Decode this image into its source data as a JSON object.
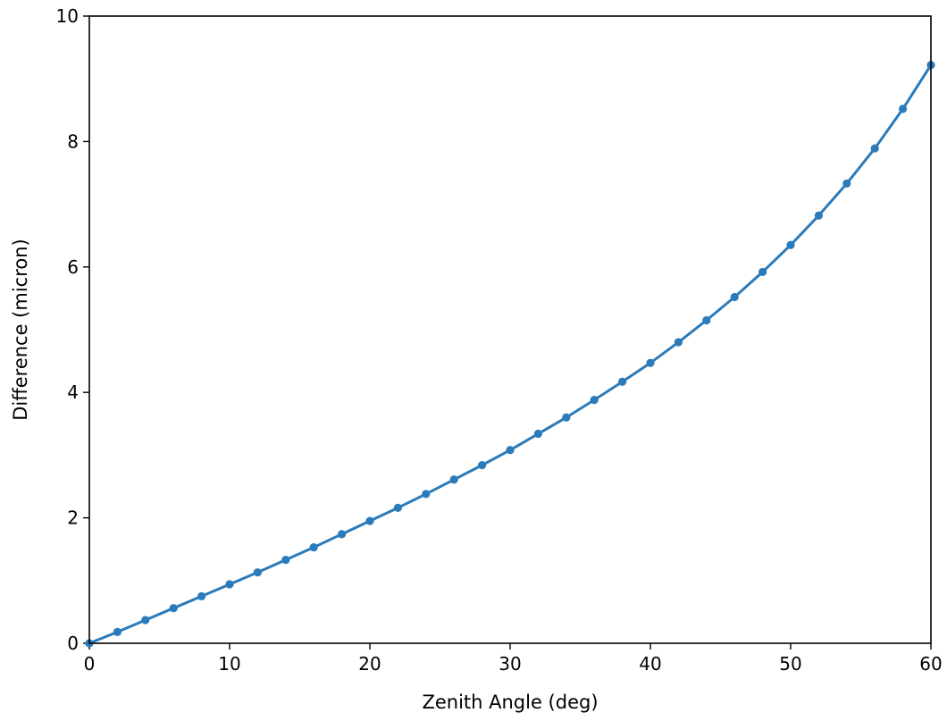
{
  "chart_data": {
    "type": "line",
    "xlabel": "Zenith Angle (deg)",
    "ylabel": "Difference (micron)",
    "xlim": [
      0,
      60
    ],
    "ylim": [
      0,
      10
    ],
    "xticks": [
      0,
      10,
      20,
      30,
      40,
      50,
      60
    ],
    "yticks": [
      0,
      2,
      4,
      6,
      8,
      10
    ],
    "grid": false,
    "series": [
      {
        "color": "#2b7bba",
        "marker": "circle",
        "x": [
          0,
          2,
          4,
          6,
          8,
          10,
          12,
          14,
          16,
          18,
          20,
          22,
          24,
          26,
          28,
          30,
          32,
          34,
          36,
          38,
          40,
          42,
          44,
          46,
          48,
          50,
          52,
          54,
          56,
          58,
          60
        ],
        "y": [
          0,
          0.18,
          0.37,
          0.56,
          0.75,
          0.94,
          1.13,
          1.33,
          1.53,
          1.74,
          1.95,
          2.16,
          2.38,
          2.61,
          2.84,
          3.08,
          3.34,
          3.6,
          3.88,
          4.17,
          4.47,
          4.8,
          5.15,
          5.52,
          5.92,
          6.35,
          6.82,
          7.33,
          7.89,
          8.52,
          9.22
        ]
      }
    ]
  }
}
